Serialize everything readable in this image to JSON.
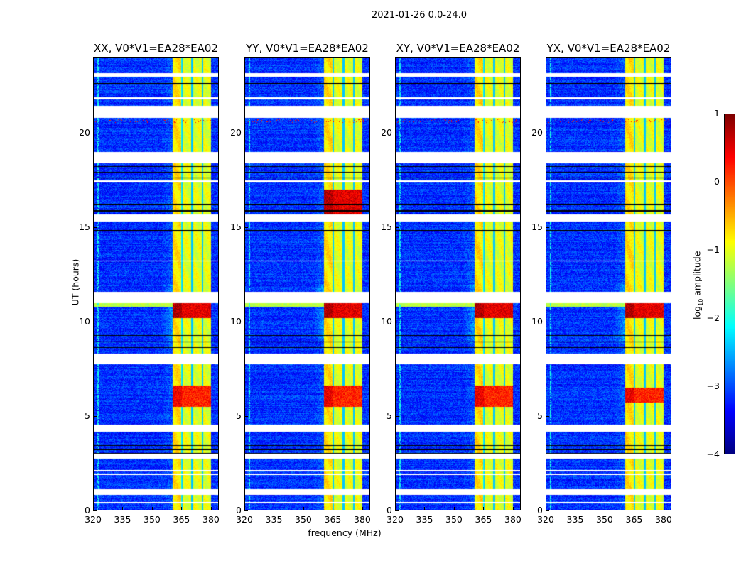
{
  "suptitle": "2021-01-26 0.0-24.0",
  "chart_data": {
    "type": "heatmap",
    "title": "2021-01-26 0.0-24.0",
    "xlabel": "frequency (MHz)",
    "ylabel": "UT (hours)",
    "xlim": [
      320,
      384
    ],
    "ylim": [
      0,
      24
    ],
    "xticks": [
      "320",
      "335",
      "350",
      "365",
      "380"
    ],
    "yticks": [
      "0",
      "5",
      "10",
      "15",
      "20"
    ],
    "panels": [
      {
        "title": "XX, V0*V1=EA28*EA02",
        "pol": "XX",
        "strong_rfi_hours": [
          [
            10.2,
            11.0
          ],
          [
            5.5,
            6.6
          ]
        ]
      },
      {
        "title": "YY, V0*V1=EA28*EA02",
        "pol": "YY",
        "strong_rfi_hours": [
          [
            10.2,
            11.0
          ],
          [
            5.5,
            6.6
          ],
          [
            15.6,
            17.0
          ]
        ]
      },
      {
        "title": "XY, V0*V1=EA28*EA02",
        "pol": "XY",
        "strong_rfi_hours": [
          [
            10.2,
            11.0
          ],
          [
            5.5,
            6.6
          ]
        ]
      },
      {
        "title": "YX, V0*V1=EA28*EA02",
        "pol": "YX",
        "strong_rfi_hours": [
          [
            10.2,
            11.0
          ],
          [
            5.7,
            6.5
          ]
        ]
      }
    ],
    "rfi_band_mhz": [
      360.5,
      380.0
    ],
    "flagged_hours": [
      [
        0.35,
        0.45
      ],
      [
        0.8,
        1.1
      ],
      [
        1.85,
        1.95
      ],
      [
        2.05,
        2.12
      ],
      [
        2.75,
        3.0
      ],
      [
        4.15,
        4.55
      ],
      [
        7.75,
        8.3
      ],
      [
        11.0,
        11.6
      ],
      [
        13.2,
        13.25
      ],
      [
        15.3,
        15.7
      ],
      [
        17.4,
        17.5
      ],
      [
        18.4,
        19.0
      ],
      [
        20.8,
        21.45
      ],
      [
        21.8,
        21.9
      ],
      [
        23.0,
        23.2
      ]
    ],
    "blank_hours": [
      [
        2.95,
        3.05
      ],
      [
        3.2,
        3.25
      ],
      [
        3.4,
        3.45
      ],
      [
        8.6,
        8.65
      ],
      [
        8.9,
        8.95
      ],
      [
        9.25,
        9.3
      ],
      [
        11.25,
        11.3
      ],
      [
        14.8,
        14.85
      ],
      [
        15.85,
        15.9
      ],
      [
        16.2,
        16.25
      ],
      [
        17.6,
        17.65
      ],
      [
        17.9,
        17.95
      ],
      [
        18.2,
        18.25
      ],
      [
        21.3,
        21.35
      ],
      [
        22.6,
        22.65
      ]
    ],
    "colorbar": {
      "label": "log10 amplitude",
      "label_main": "log",
      "label_sub": "10",
      "label_rest": " amplitude",
      "range": [
        -4,
        1
      ],
      "ticks": [
        "1",
        "0",
        "−1",
        "−2",
        "−3",
        "−4"
      ],
      "colormap": "jet"
    }
  }
}
